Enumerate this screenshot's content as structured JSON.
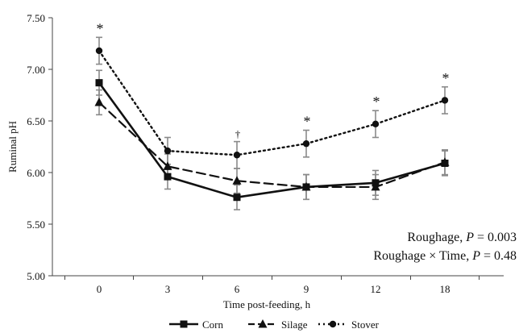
{
  "chart_data": {
    "type": "line",
    "xlabel": "Time post-feeding, h",
    "ylabel": "Ruminal pH",
    "categories": [
      "0",
      "3",
      "6",
      "9",
      "12",
      "18"
    ],
    "ylim": [
      5.0,
      7.5
    ],
    "yticks": [
      "5.00",
      "5.50",
      "6.00",
      "6.50",
      "7.00",
      "7.50"
    ],
    "grid": false,
    "legend_position": "bottom",
    "series": [
      {
        "name": "Corn",
        "style": "solid",
        "marker": "square",
        "values": [
          6.87,
          5.96,
          5.76,
          5.86,
          5.9,
          6.09
        ],
        "errors": [
          0.12,
          0.12,
          0.12,
          0.12,
          0.12,
          0.12
        ]
      },
      {
        "name": "Silage",
        "style": "dashed",
        "marker": "triangle",
        "values": [
          6.68,
          6.06,
          5.92,
          5.86,
          5.86,
          6.1
        ],
        "errors": [
          0.12,
          0.12,
          0.12,
          0.12,
          0.12,
          0.12
        ]
      },
      {
        "name": "Stover",
        "style": "dotted",
        "marker": "circle",
        "values": [
          7.18,
          6.21,
          6.17,
          6.28,
          6.47,
          6.7
        ],
        "errors": [
          0.13,
          0.13,
          0.13,
          0.13,
          0.13,
          0.13
        ]
      }
    ],
    "significance_marks": [
      "*",
      "",
      "†",
      "*",
      "*",
      "*"
    ],
    "annotations": [
      {
        "prefix": "Roughage, ",
        "italic": "P",
        "suffix": " = 0.003"
      },
      {
        "prefix": "Roughage × Time, ",
        "italic": "P",
        "suffix": " = 0.48"
      }
    ]
  }
}
